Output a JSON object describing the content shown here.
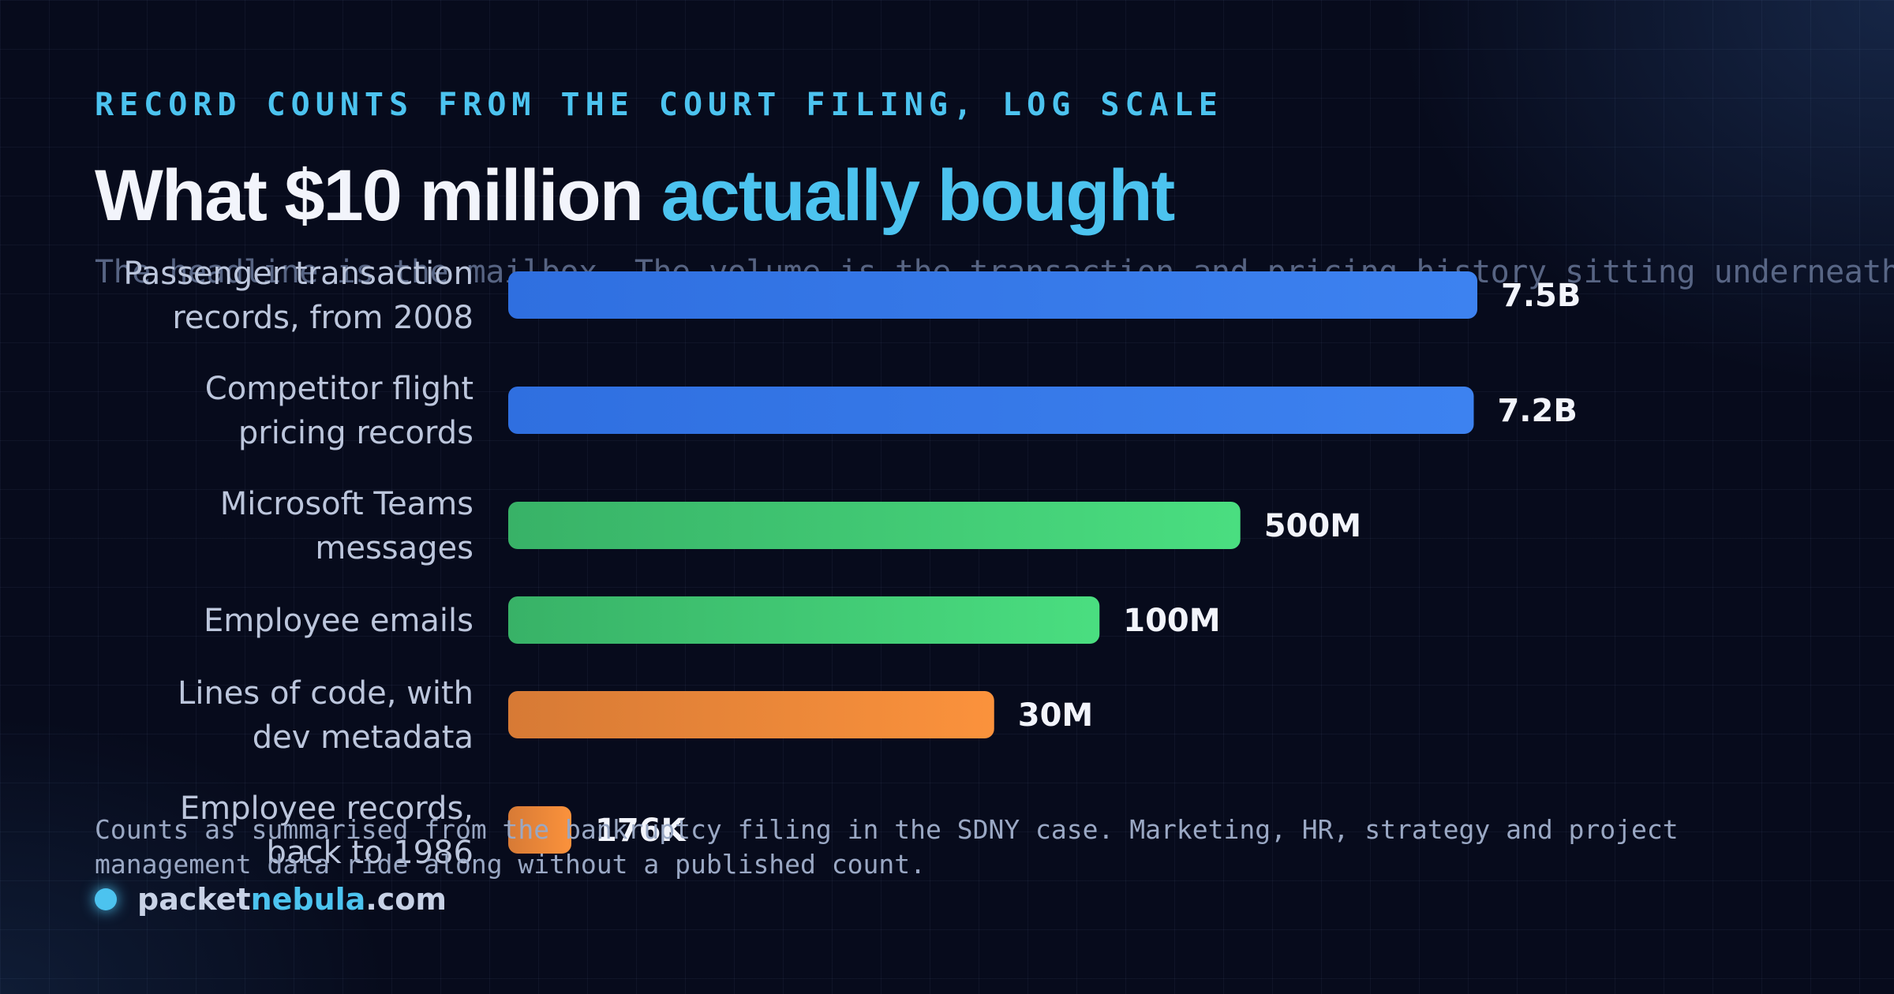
{
  "header": {
    "kicker": "RECORD COUNTS FROM THE COURT FILING, LOG SCALE",
    "title_main": "What $10 million ",
    "title_highlight": "actually bought",
    "subtitle": "The headline is the mailbox. The volume is the transaction and pricing history sitting underneath it."
  },
  "chart_data": {
    "type": "bar",
    "orientation": "horizontal",
    "scale": "log",
    "categories": [
      [
        "Passenger transaction",
        "records, from 2008"
      ],
      [
        "Competitor flight",
        "pricing records"
      ],
      [
        "Microsoft Teams",
        "messages"
      ],
      [
        "Employee emails"
      ],
      [
        "Lines of code, with",
        "dev metadata"
      ],
      [
        "Employee records,",
        "back to 1986"
      ]
    ],
    "values": [
      7500000000,
      7200000000,
      500000000,
      100000000,
      30000000,
      176000
    ],
    "value_labels": [
      "7.5B",
      "7.2B",
      "500M",
      "100M",
      "30M",
      "176K"
    ],
    "colors": [
      [
        "#2f6fe0",
        "#3d82f0"
      ],
      [
        "#2f6fe0",
        "#3d82f0"
      ],
      [
        "#38b267",
        "#4ade80"
      ],
      [
        "#38b267",
        "#4ade80"
      ],
      [
        "#d77a35",
        "#fb923c"
      ],
      [
        "#d77a35",
        "#fb923c"
      ]
    ],
    "grid": false,
    "legend": "none"
  },
  "footnote": "Counts as summarised from the bankruptcy filing in the SDNY case. Marketing, HR, strategy and project management data ride along without a published count.",
  "brand": {
    "name_start": "packet",
    "name_accent": "nebula",
    "name_end": ".com"
  }
}
